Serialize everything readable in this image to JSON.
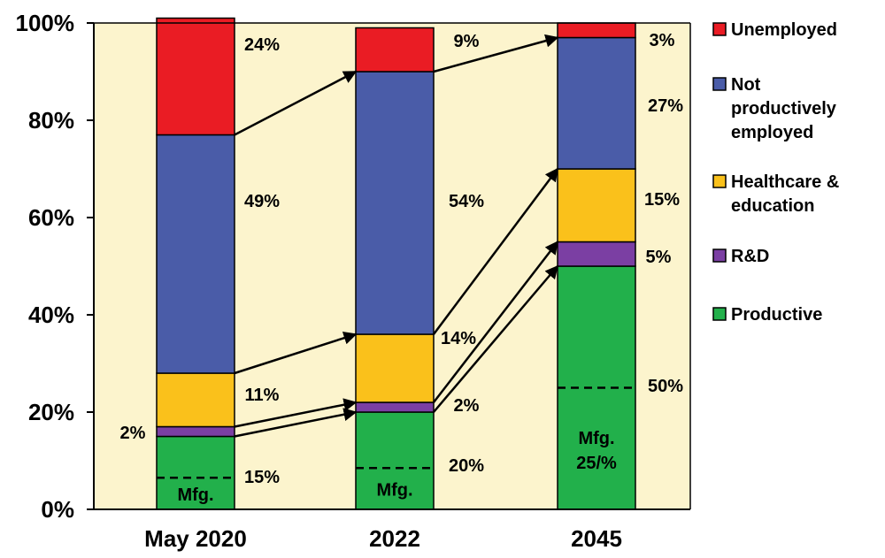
{
  "chart_data": {
    "type": "bar",
    "stacked": true,
    "categories": [
      "May 2020",
      "2022",
      "2045"
    ],
    "ylim": [
      0,
      100
    ],
    "yticks": [
      "0%",
      "20%",
      "40%",
      "60%",
      "80%",
      "100%"
    ],
    "series": [
      {
        "name": "Productive",
        "color": "#22b04b",
        "values": [
          15,
          20,
          50
        ],
        "labels": [
          "15%",
          "20%",
          "50%"
        ]
      },
      {
        "name": "R&D",
        "color": "#7b3fa3",
        "values": [
          2,
          2,
          5
        ],
        "labels": [
          "2%",
          "2%",
          "5%"
        ]
      },
      {
        "name": "Healthcare & education",
        "legend_lines": [
          "Healthcare &",
          "education"
        ],
        "color": "#fac11b",
        "values": [
          11,
          14,
          15
        ],
        "labels": [
          "11%",
          "14%",
          "15%"
        ]
      },
      {
        "name": "Not productively employed",
        "legend_lines": [
          "Not",
          "productively",
          "employed"
        ],
        "color": "#4a5ca8",
        "values": [
          49,
          54,
          27
        ],
        "labels": [
          "49%",
          "54%",
          "27%"
        ]
      },
      {
        "name": "Unemployed",
        "color": "#ea1c24",
        "values": [
          24,
          9,
          3
        ],
        "labels": [
          "24%",
          "9%",
          "3%"
        ]
      }
    ],
    "manufacturing_marker": {
      "values": [
        6.5,
        8.5,
        25
      ],
      "labels": [
        [
          "Mfg."
        ],
        [
          "Mfg."
        ],
        [
          "Mfg.",
          "25/%"
        ]
      ]
    },
    "background_color": "#fcf4cd",
    "legend_position": "right"
  }
}
